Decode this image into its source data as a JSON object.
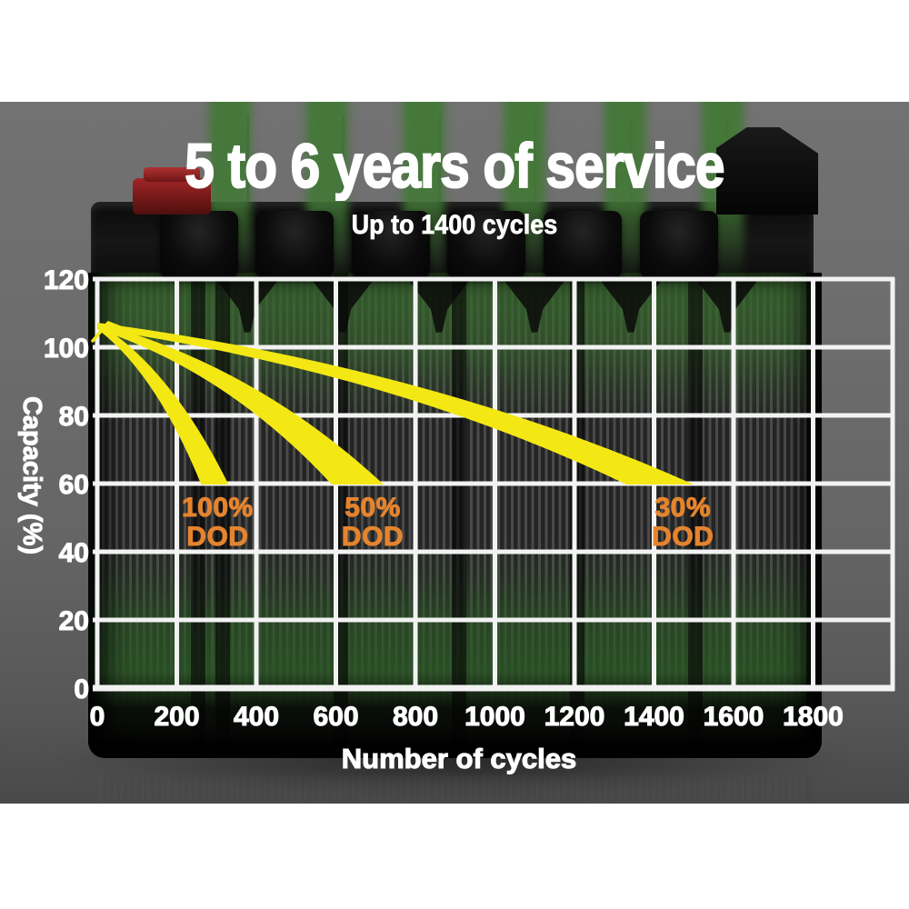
{
  "page": {
    "background_color": "#ffffff",
    "photo_background_color": "#6a6a6a",
    "battery_green": "#42783б",
    "white_text_color": "#ffffff"
  },
  "header": {
    "title": "5 to 6 years of service",
    "subtitle": "Up to 1400 cycles"
  },
  "chart_data": {
    "type": "area",
    "title": "5 to 6 years of service",
    "subtitle": "Up to 1400 cycles",
    "xlabel": "Number of cycles",
    "ylabel": "Capacity (%)",
    "xlim": [
      0,
      2000
    ],
    "ylim": [
      0,
      120
    ],
    "x_tick_step": 200,
    "x_ticks": [
      0,
      200,
      400,
      600,
      800,
      1000,
      1200,
      1400,
      1600,
      1800
    ],
    "y_ticks": [
      0,
      20,
      40,
      60,
      80,
      100,
      120
    ],
    "grid": true,
    "grid_color": "#f2f2f2",
    "curve_color": "#f4e814",
    "dod_label_color": "#e5842e",
    "series": [
      {
        "name": "100% DOD",
        "label_lines": [
          "100%",
          "DOD"
        ],
        "points": [
          [
            0,
            106
          ],
          [
            330,
            60
          ]
        ]
      },
      {
        "name": "50% DOD",
        "label_lines": [
          "50%",
          "DOD"
        ],
        "points": [
          [
            0,
            106
          ],
          [
            720,
            60
          ]
        ]
      },
      {
        "name": "30% DOD",
        "label_lines": [
          "30%",
          "DOD"
        ],
        "points": [
          [
            0,
            106
          ],
          [
            1500,
            60
          ]
        ]
      }
    ]
  }
}
